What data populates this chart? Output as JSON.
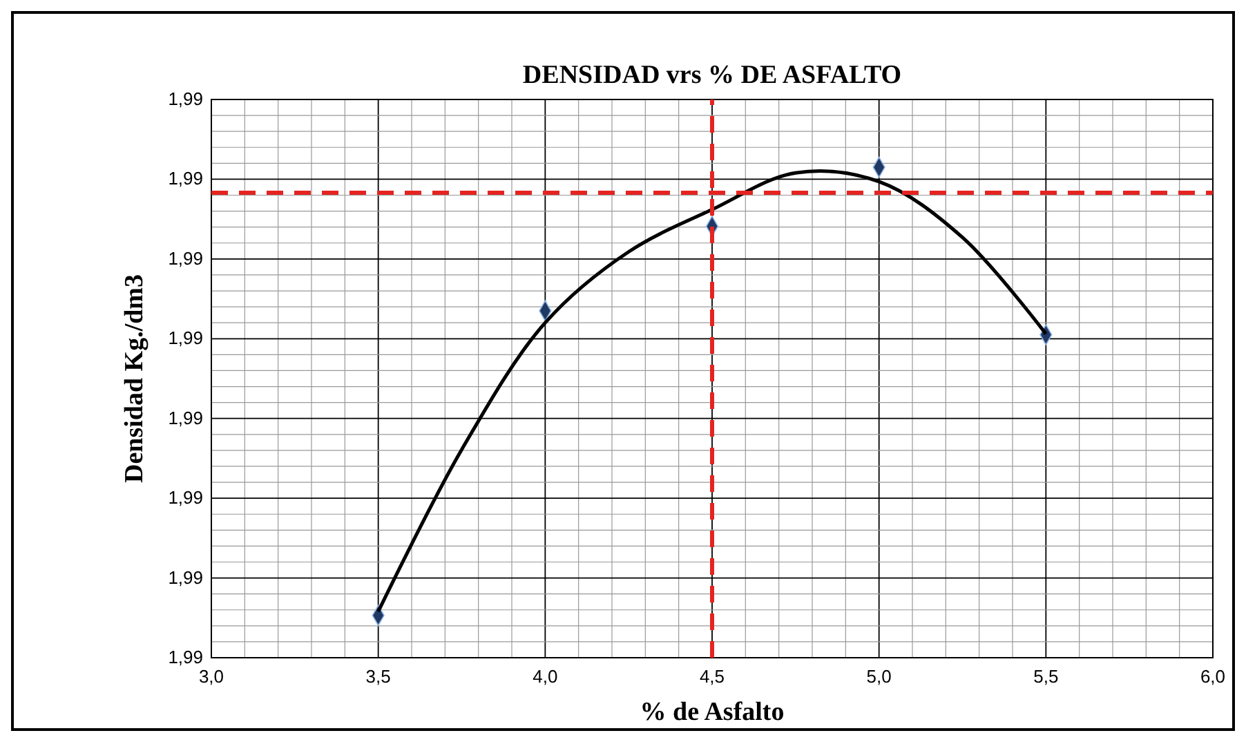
{
  "chart_data": {
    "type": "scatter",
    "title": "DENSIDAD vrs % DE ASFALTO",
    "xlabel": "% de Asfalto",
    "ylabel": "Densidad Kg./dm3",
    "xlim": [
      3.0,
      6.0
    ],
    "xticks": [
      {
        "value": 3.0,
        "label": "3,0"
      },
      {
        "value": 3.5,
        "label": "3,5"
      },
      {
        "value": 4.0,
        "label": "4,0"
      },
      {
        "value": 4.5,
        "label": "4,5"
      },
      {
        "value": 5.0,
        "label": "5,0"
      },
      {
        "value": 5.5,
        "label": "5,5"
      },
      {
        "value": 6.0,
        "label": "6,0"
      }
    ],
    "ylim": [
      1.986,
      1.993
    ],
    "yticks": [
      {
        "value": 1.986,
        "label": "1,99"
      },
      {
        "value": 1.987,
        "label": "1,99"
      },
      {
        "value": 1.988,
        "label": "1,99"
      },
      {
        "value": 1.989,
        "label": "1,99"
      },
      {
        "value": 1.99,
        "label": "1,99"
      },
      {
        "value": 1.991,
        "label": "1,99"
      },
      {
        "value": 1.992,
        "label": "1,99"
      },
      {
        "value": 1.993,
        "label": "1,99"
      }
    ],
    "grid": true,
    "series": [
      {
        "color": "#1f3864",
        "marker": "diamond",
        "x": [
          3.5,
          4.0,
          4.5,
          5.0,
          5.5
        ],
        "values": [
          1.98653,
          1.99035,
          1.99141,
          1.99215,
          1.99005
        ]
      },
      {
        "type": "line",
        "color": "#000000",
        "marker": "none",
        "line_style": "solid",
        "x": [
          3.5,
          3.75,
          4.0,
          4.25,
          4.5,
          4.75,
          5.0,
          5.25,
          5.5
        ],
        "values": [
          1.98658,
          1.98861,
          1.9902,
          1.99109,
          1.99162,
          1.99208,
          1.99197,
          1.99127,
          1.99006
        ]
      }
    ],
    "ref_lines": [
      {
        "axis": "y",
        "value": 1.99183,
        "color": "#e52421",
        "line_style": "dashed"
      },
      {
        "axis": "x",
        "value": 4.5,
        "color": "#e52421",
        "line_style": "dashed"
      }
    ]
  }
}
